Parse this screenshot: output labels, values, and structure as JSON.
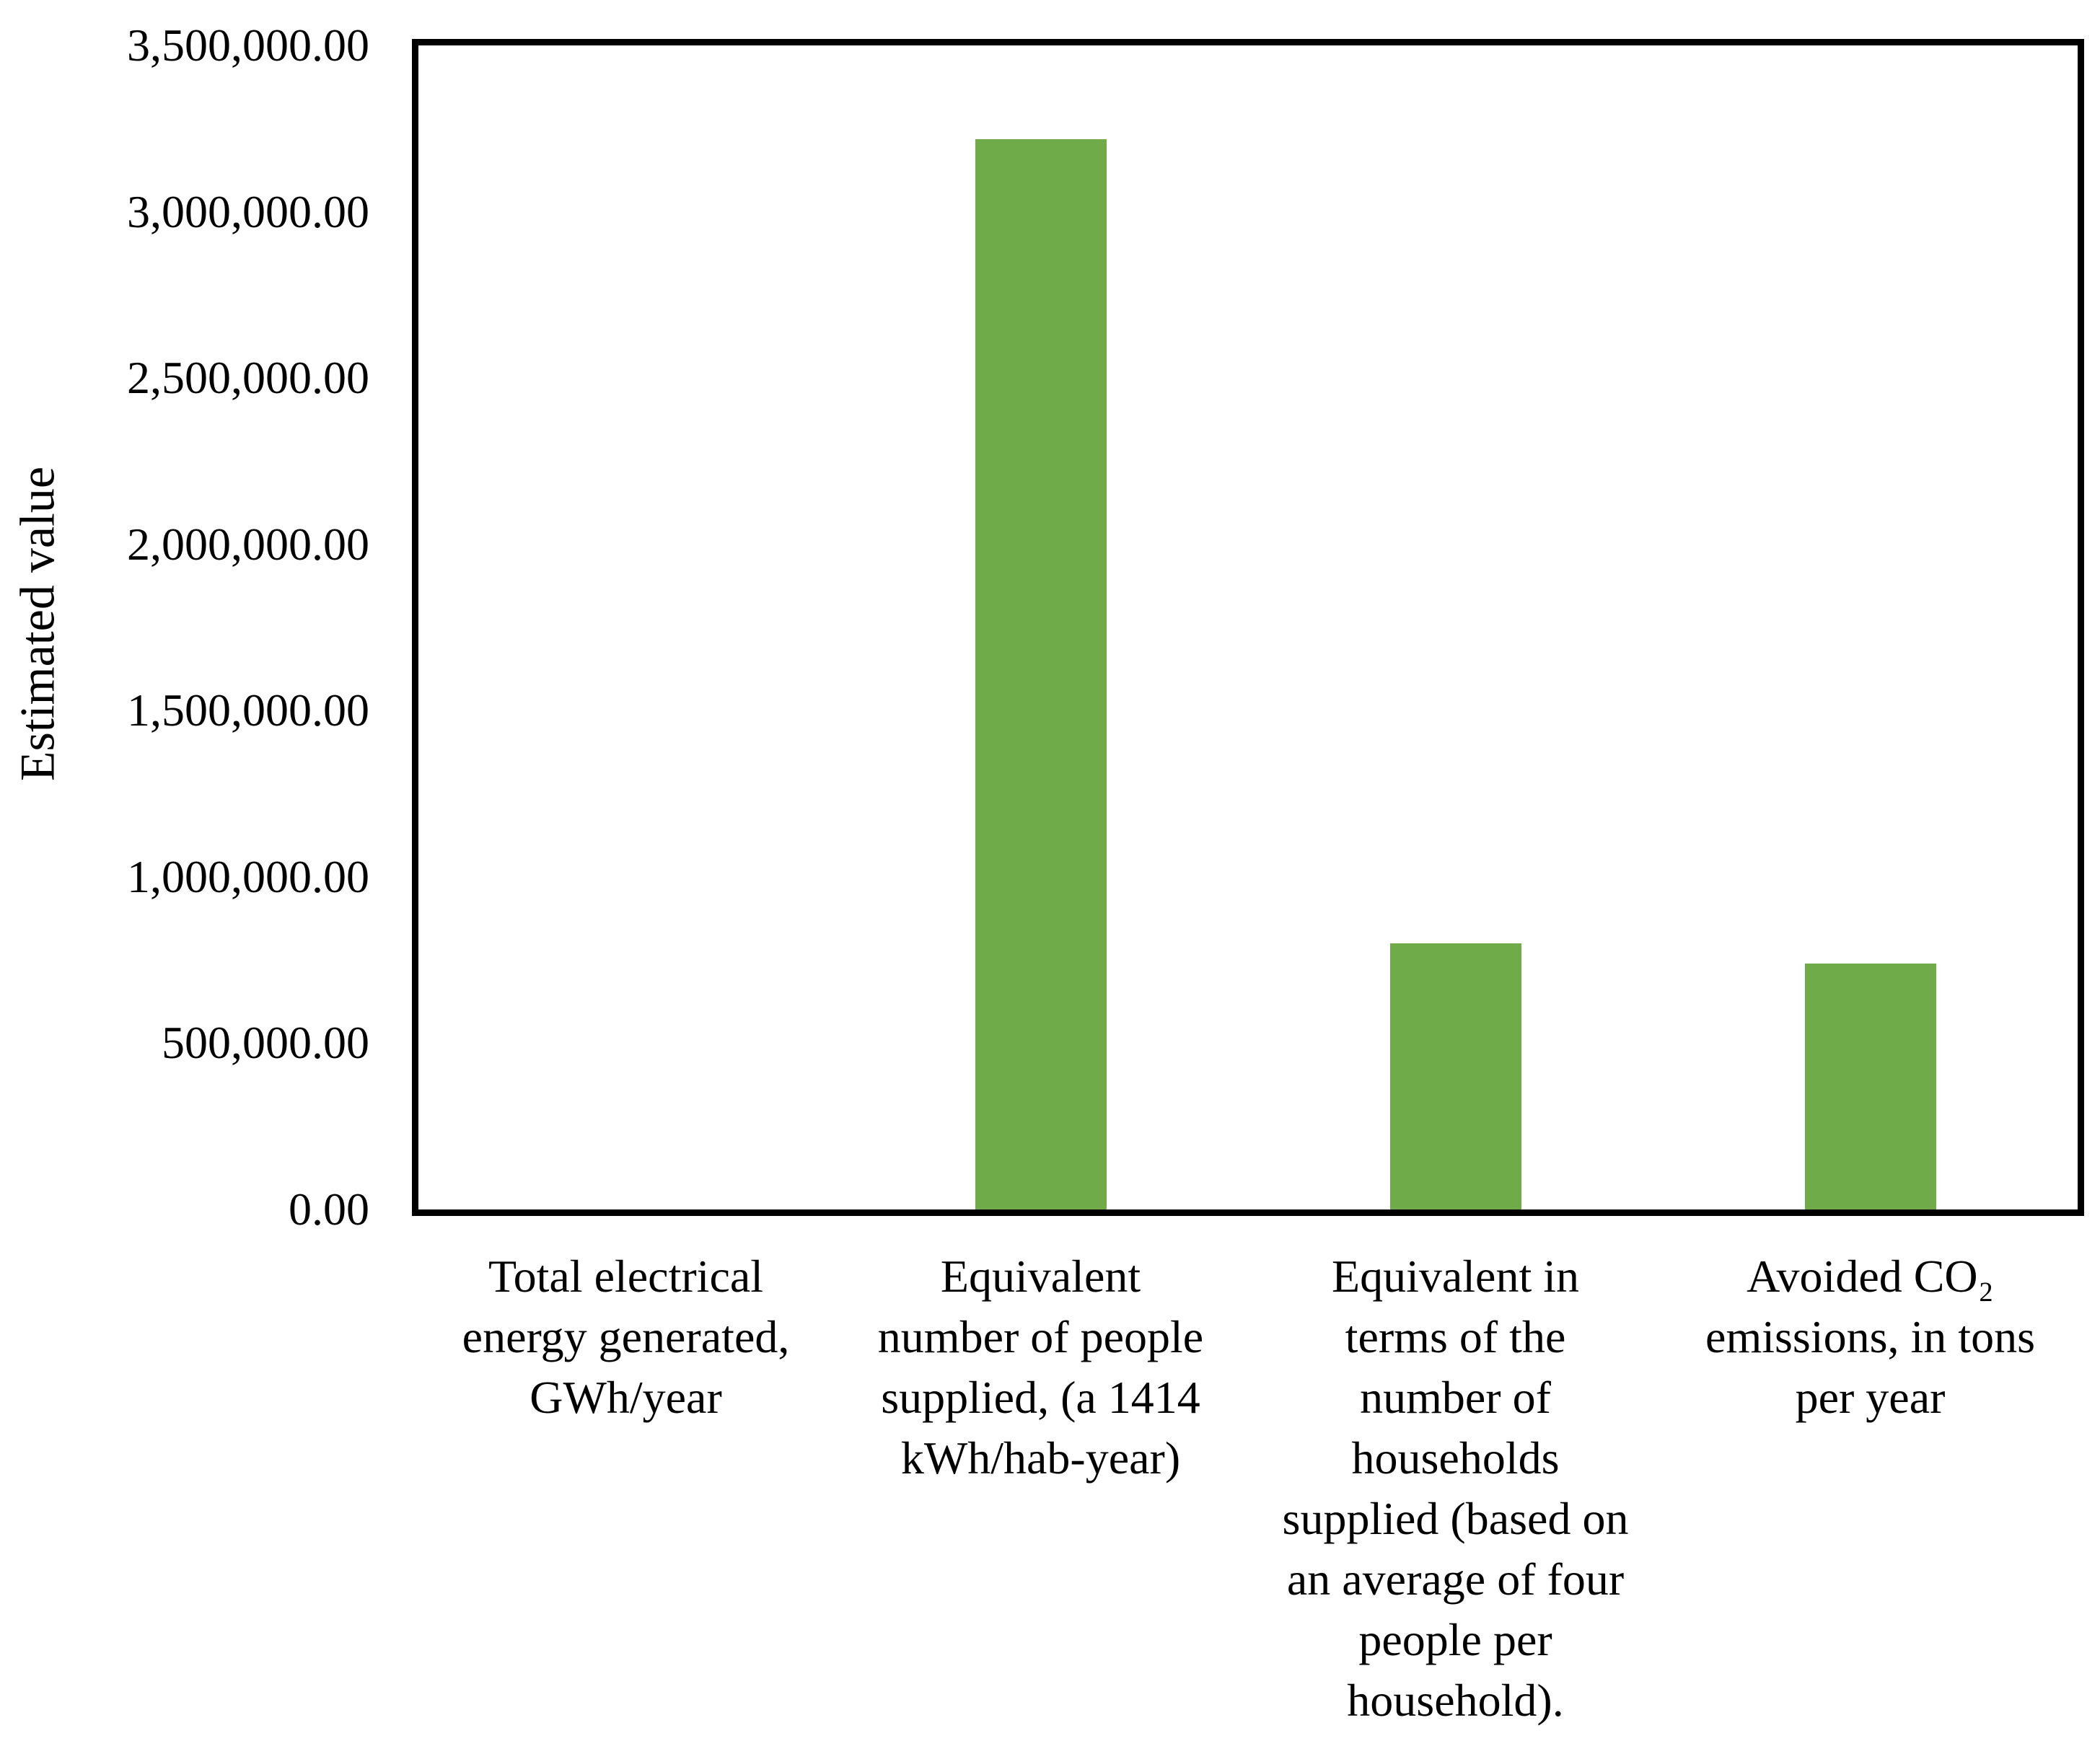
{
  "chart_data": {
    "type": "bar",
    "title": "",
    "xlabel": "",
    "ylabel": "Estimated value",
    "ylim": [
      0,
      3500000
    ],
    "grid": false,
    "legend": false,
    "background_color": "#FFFFFF",
    "axis_color": "#000000",
    "bar_color": "#6FAC49",
    "ytick_values": [
      0,
      500000,
      1000000,
      1500000,
      2000000,
      2500000,
      3000000,
      3500000
    ],
    "ytick_labels": [
      "0.00",
      "500,000.00",
      "1,000,000.00",
      "1,500,000.00",
      "2,000,000.00",
      "2,500,000.00",
      "3,000,000.00",
      "3,500,000.00"
    ],
    "categories": [
      "Total electrical\nenergy generated,\nGWh/year",
      "Equivalent\nnumber of people\nsupplied, (a 1414\nkWh/hab-year)",
      "Equivalent in\nterms of the\nnumber of\nhouseholds\nsupplied (based on\nan average of four\npeople per\nhousehold).",
      "Avoided CO₂\nemissions, in tons\nper year"
    ],
    "values": [
      0,
      3218000,
      800000,
      740000
    ]
  }
}
